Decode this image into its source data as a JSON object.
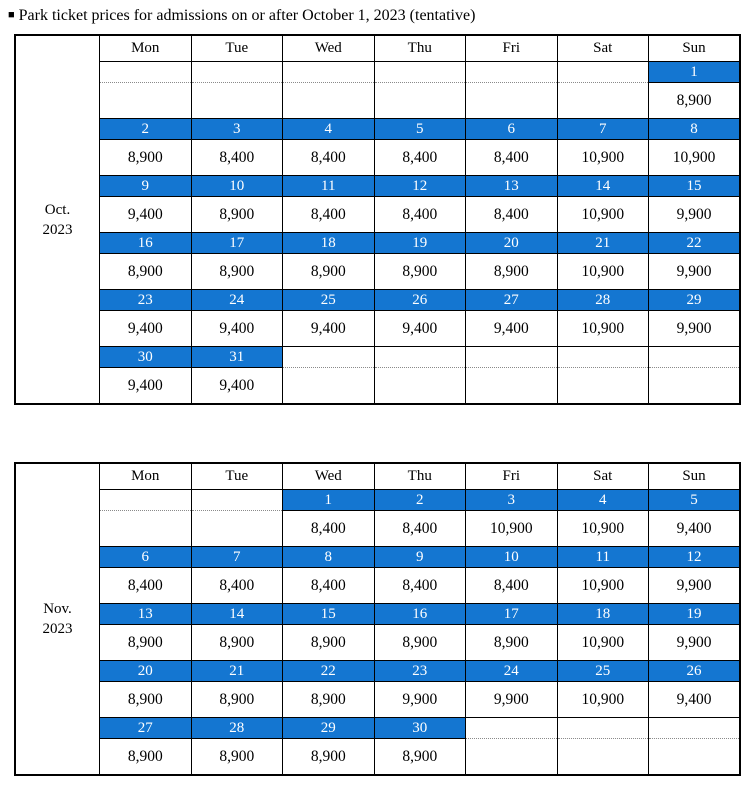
{
  "title": {
    "bullet": "■",
    "text": "Park ticket prices for admissions on or after October 1, 2023 (tentative)"
  },
  "colors": {
    "date_bar_blue": "#1476D1",
    "date_text_white": "#FFFFFF",
    "grid_border_black": "#000000",
    "dotted_divider_gray": "#8A8A8A"
  },
  "day_headers": [
    "Mon",
    "Tue",
    "Wed",
    "Thu",
    "Fri",
    "Sat",
    "Sun"
  ],
  "tables": [
    {
      "name": "october-2023-table",
      "month_label": [
        "Oct.",
        "2023"
      ],
      "weeks": [
        [
          null,
          null,
          null,
          null,
          null,
          null,
          {
            "d": "1",
            "p": "8,900"
          }
        ],
        [
          {
            "d": "2",
            "p": "8,900"
          },
          {
            "d": "3",
            "p": "8,400"
          },
          {
            "d": "4",
            "p": "8,400"
          },
          {
            "d": "5",
            "p": "8,400"
          },
          {
            "d": "6",
            "p": "8,400"
          },
          {
            "d": "7",
            "p": "10,900"
          },
          {
            "d": "8",
            "p": "10,900"
          }
        ],
        [
          {
            "d": "9",
            "p": "9,400"
          },
          {
            "d": "10",
            "p": "8,900"
          },
          {
            "d": "11",
            "p": "8,400"
          },
          {
            "d": "12",
            "p": "8,400"
          },
          {
            "d": "13",
            "p": "8,400"
          },
          {
            "d": "14",
            "p": "10,900"
          },
          {
            "d": "15",
            "p": "9,900"
          }
        ],
        [
          {
            "d": "16",
            "p": "8,900"
          },
          {
            "d": "17",
            "p": "8,900"
          },
          {
            "d": "18",
            "p": "8,900"
          },
          {
            "d": "19",
            "p": "8,900"
          },
          {
            "d": "20",
            "p": "8,900"
          },
          {
            "d": "21",
            "p": "10,900"
          },
          {
            "d": "22",
            "p": "9,900"
          }
        ],
        [
          {
            "d": "23",
            "p": "9,400"
          },
          {
            "d": "24",
            "p": "9,400"
          },
          {
            "d": "25",
            "p": "9,400"
          },
          {
            "d": "26",
            "p": "9,400"
          },
          {
            "d": "27",
            "p": "9,400"
          },
          {
            "d": "28",
            "p": "10,900"
          },
          {
            "d": "29",
            "p": "9,900"
          }
        ],
        [
          {
            "d": "30",
            "p": "9,400"
          },
          {
            "d": "31",
            "p": "9,400"
          },
          null,
          null,
          null,
          null,
          null
        ]
      ]
    },
    {
      "name": "november-2023-table",
      "month_label": [
        "Nov.",
        "2023"
      ],
      "weeks": [
        [
          null,
          null,
          {
            "d": "1",
            "p": "8,400"
          },
          {
            "d": "2",
            "p": "8,400"
          },
          {
            "d": "3",
            "p": "10,900"
          },
          {
            "d": "4",
            "p": "10,900"
          },
          {
            "d": "5",
            "p": "9,400"
          }
        ],
        [
          {
            "d": "6",
            "p": "8,400"
          },
          {
            "d": "7",
            "p": "8,400"
          },
          {
            "d": "8",
            "p": "8,400"
          },
          {
            "d": "9",
            "p": "8,400"
          },
          {
            "d": "10",
            "p": "8,400"
          },
          {
            "d": "11",
            "p": "10,900"
          },
          {
            "d": "12",
            "p": "9,900"
          }
        ],
        [
          {
            "d": "13",
            "p": "8,900"
          },
          {
            "d": "14",
            "p": "8,900"
          },
          {
            "d": "15",
            "p": "8,900"
          },
          {
            "d": "16",
            "p": "8,900"
          },
          {
            "d": "17",
            "p": "8,900"
          },
          {
            "d": "18",
            "p": "10,900"
          },
          {
            "d": "19",
            "p": "9,900"
          }
        ],
        [
          {
            "d": "20",
            "p": "8,900"
          },
          {
            "d": "21",
            "p": "8,900"
          },
          {
            "d": "22",
            "p": "8,900"
          },
          {
            "d": "23",
            "p": "9,900"
          },
          {
            "d": "24",
            "p": "9,900"
          },
          {
            "d": "25",
            "p": "10,900"
          },
          {
            "d": "26",
            "p": "9,400"
          }
        ],
        [
          {
            "d": "27",
            "p": "8,900"
          },
          {
            "d": "28",
            "p": "8,900"
          },
          {
            "d": "29",
            "p": "8,900"
          },
          {
            "d": "30",
            "p": "8,900"
          },
          null,
          null,
          null
        ]
      ]
    }
  ]
}
